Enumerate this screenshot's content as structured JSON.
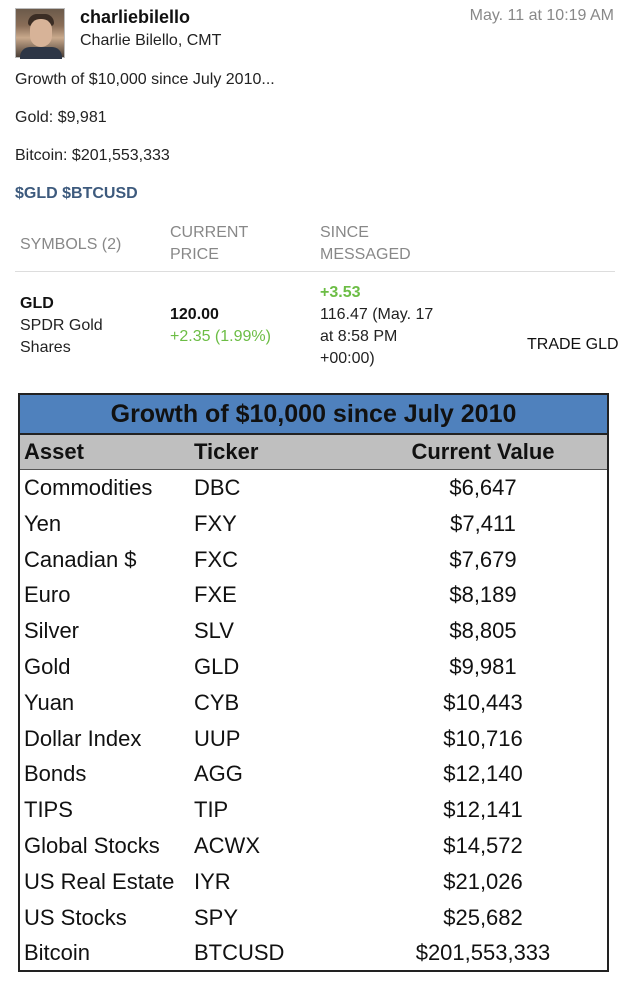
{
  "post": {
    "username": "charliebilello",
    "fullname": "Charlie Bilello, CMT",
    "timestamp": "May. 11 at 10:19 AM",
    "lines": [
      "Growth of $10,000 since July 2010...",
      "Gold: $9,981",
      "Bitcoin: $201,553,333"
    ],
    "tags": "$GLD $BTCUSD"
  },
  "symbols": {
    "header_symbols": "SYMBOLS (2)",
    "header_price_1": "CURRENT",
    "header_price_2": "PRICE",
    "header_since_1": "SINCE",
    "header_since_2": "MESSAGED",
    "ticker": "GLD",
    "name_1": "SPDR Gold",
    "name_2": "Shares",
    "price": "120.00",
    "change": "+2.35 (1.99%)",
    "since_change": "+3.53",
    "since_1": "116.47 (May. 17",
    "since_2": "at 8:58 PM",
    "since_3": "+00:00)",
    "trade": "TRADE GLD",
    "accent_green": "#6cbd45"
  },
  "table": {
    "title": "Growth of $10,000 since July 2010",
    "headers": [
      "Asset",
      "Ticker",
      "Current Value"
    ],
    "rows": [
      [
        "Commodities",
        "DBC",
        "$6,647"
      ],
      [
        "Yen",
        "FXY",
        "$7,411"
      ],
      [
        "Canadian $",
        "FXC",
        "$7,679"
      ],
      [
        "Euro",
        "FXE",
        "$8,189"
      ],
      [
        "Silver",
        "SLV",
        "$8,805"
      ],
      [
        "Gold",
        "GLD",
        "$9,981"
      ],
      [
        "Yuan",
        "CYB",
        "$10,443"
      ],
      [
        "Dollar Index",
        "UUP",
        "$10,716"
      ],
      [
        "Bonds",
        "AGG",
        "$12,140"
      ],
      [
        "TIPS",
        "TIP",
        "$12,141"
      ],
      [
        "Global Stocks",
        "ACWX",
        "$14,572"
      ],
      [
        "US Real Estate",
        "IYR",
        "$21,026"
      ],
      [
        "US Stocks",
        "SPY",
        "$25,682"
      ],
      [
        "Bitcoin",
        "BTCUSD",
        "$201,553,333"
      ]
    ],
    "title_bg": "#4f81bd",
    "header_bg": "#bfbfbf"
  }
}
